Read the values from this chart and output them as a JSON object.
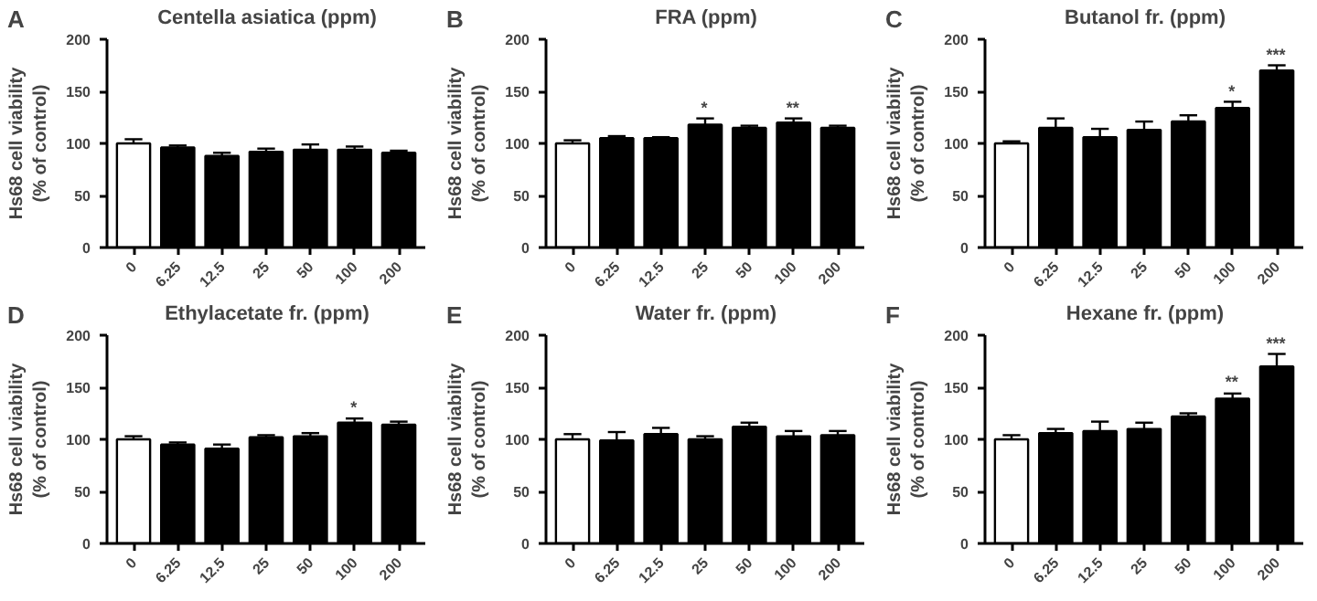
{
  "chart_data": [
    {
      "type": "bar",
      "title": "Centella asiatica (ppm)",
      "ylabel": "Hs68 cell viability\n(% of control)",
      "categories": [
        "0",
        "6.25",
        "12.5",
        "25",
        "50",
        "100",
        "200"
      ],
      "values": [
        100,
        96,
        88,
        92,
        94,
        94,
        91
      ],
      "errors": [
        4,
        2,
        3,
        3,
        5,
        3,
        2
      ],
      "colors": [
        "#ffffff",
        "#000000",
        "#000000",
        "#000000",
        "#000000",
        "#000000",
        "#000000"
      ],
      "ylim": [
        0,
        200
      ],
      "yticks": [
        0,
        50,
        100,
        150,
        200
      ],
      "grid": false,
      "annotations": [
        "A"
      ]
    },
    {
      "type": "bar",
      "title": "FRA (ppm)",
      "ylabel": "Hs68 cell viability\n(% of control)",
      "categories": [
        "0",
        "6.25",
        "12.5",
        "25",
        "50",
        "100",
        "200"
      ],
      "values": [
        100,
        105,
        105,
        118,
        115,
        120,
        115
      ],
      "errors": [
        3,
        2,
        1,
        6,
        2,
        4,
        2
      ],
      "colors": [
        "#ffffff",
        "#000000",
        "#000000",
        "#000000",
        "#000000",
        "#000000",
        "#000000"
      ],
      "ylim": [
        0,
        200
      ],
      "yticks": [
        0,
        50,
        100,
        150,
        200
      ],
      "grid": false,
      "annotations": [
        "B",
        {
          "text": "*",
          "x": "25",
          "y": 125
        },
        {
          "text": "**",
          "x": "100",
          "y": 125
        }
      ]
    },
    {
      "type": "bar",
      "title": "Butanol fr. (ppm)",
      "ylabel": "Hs68 cell viability\n(% of control)",
      "categories": [
        "0",
        "6.25",
        "12.5",
        "25",
        "50",
        "100",
        "200"
      ],
      "values": [
        100,
        115,
        106,
        113,
        121,
        134,
        170
      ],
      "errors": [
        2,
        9,
        8,
        8,
        6,
        6,
        5
      ],
      "colors": [
        "#ffffff",
        "#000000",
        "#000000",
        "#000000",
        "#000000",
        "#000000",
        "#000000"
      ],
      "ylim": [
        0,
        200
      ],
      "yticks": [
        0,
        50,
        100,
        150,
        200
      ],
      "grid": false,
      "annotations": [
        "C",
        {
          "text": "*",
          "x": "100",
          "y": 141
        },
        {
          "text": "***",
          "x": "200",
          "y": 176
        }
      ]
    },
    {
      "type": "bar",
      "title": "Ethylacetate fr. (ppm)",
      "ylabel": "Hs68 cell viability\n(% of control)",
      "categories": [
        "0",
        "6.25",
        "12.5",
        "25",
        "50",
        "100",
        "200"
      ],
      "values": [
        100,
        95,
        91,
        102,
        103,
        116,
        114
      ],
      "errors": [
        3,
        2,
        4,
        2,
        3,
        4,
        3
      ],
      "colors": [
        "#ffffff",
        "#000000",
        "#000000",
        "#000000",
        "#000000",
        "#000000",
        "#000000"
      ],
      "ylim": [
        0,
        200
      ],
      "yticks": [
        0,
        50,
        100,
        150,
        200
      ],
      "grid": false,
      "annotations": [
        "D",
        {
          "text": "*",
          "x": "100",
          "y": 121
        }
      ]
    },
    {
      "type": "bar",
      "title": "Water fr. (ppm)",
      "ylabel": "Hs68 cell viability\n(% of control)",
      "categories": [
        "0",
        "6.25",
        "12.5",
        "25",
        "50",
        "100",
        "200"
      ],
      "values": [
        100,
        99,
        105,
        100,
        112,
        103,
        104
      ],
      "errors": [
        5,
        8,
        6,
        3,
        4,
        5,
        4
      ],
      "colors": [
        "#ffffff",
        "#000000",
        "#000000",
        "#000000",
        "#000000",
        "#000000",
        "#000000"
      ],
      "ylim": [
        0,
        200
      ],
      "yticks": [
        0,
        50,
        100,
        150,
        200
      ],
      "grid": false,
      "annotations": [
        "E"
      ]
    },
    {
      "type": "bar",
      "title": "Hexane fr. (ppm)",
      "ylabel": "Hs68 cell viability\n(% of control)",
      "categories": [
        "0",
        "6.25",
        "12.5",
        "25",
        "50",
        "100",
        "200"
      ],
      "values": [
        100,
        106,
        108,
        110,
        122,
        139,
        170
      ],
      "errors": [
        4,
        4,
        9,
        6,
        3,
        5,
        12
      ],
      "colors": [
        "#ffffff",
        "#000000",
        "#000000",
        "#000000",
        "#000000",
        "#000000",
        "#000000"
      ],
      "ylim": [
        0,
        200
      ],
      "yticks": [
        0,
        50,
        100,
        150,
        200
      ],
      "grid": false,
      "annotations": [
        "F",
        {
          "text": "**",
          "x": "100",
          "y": 145
        },
        {
          "text": "***",
          "x": "200",
          "y": 182
        }
      ]
    }
  ]
}
